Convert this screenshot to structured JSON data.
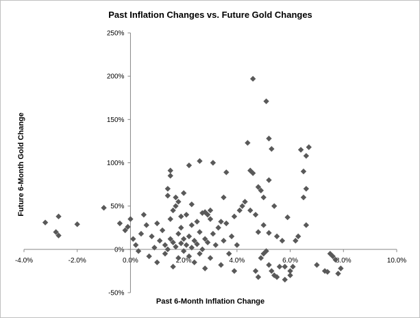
{
  "chart_data": {
    "type": "scatter",
    "title": "Past Inflation Changes vs. Future Gold Changes",
    "xlabel": "Past 6-Month Inflation Change",
    "ylabel": "Future 6-Month Gold Change",
    "xlim": [
      -0.04,
      0.1
    ],
    "ylim": [
      -0.5,
      2.5
    ],
    "x_ticks": [
      -0.04,
      -0.02,
      0.0,
      0.02,
      0.04,
      0.06,
      0.08,
      0.1
    ],
    "x_tick_labels": [
      "-4.0%",
      "-2.0%",
      "0.0%",
      "2.0%",
      "4.0%",
      "6.0%",
      "8.0%",
      "10.0%"
    ],
    "y_ticks": [
      -0.5,
      0.0,
      0.5,
      1.0,
      1.5,
      2.0,
      2.5
    ],
    "y_tick_labels": [
      "-50%",
      "0%",
      "50%",
      "100%",
      "150%",
      "200%",
      "250%"
    ],
    "grid": false,
    "legend": "none",
    "marker_color": "#595959",
    "marker": "diamond",
    "series": [
      {
        "points": [
          [
            -0.032,
            0.31
          ],
          [
            -0.028,
            0.2
          ],
          [
            -0.027,
            0.38
          ],
          [
            -0.027,
            0.16
          ],
          [
            -0.02,
            0.29
          ],
          [
            -0.01,
            0.48
          ],
          [
            -0.004,
            0.3
          ],
          [
            -0.002,
            0.22
          ],
          [
            -0.001,
            0.26
          ],
          [
            0.0,
            0.35
          ],
          [
            0.001,
            0.12
          ],
          [
            0.002,
            0.05
          ],
          [
            0.003,
            -0.02
          ],
          [
            0.004,
            0.18
          ],
          [
            0.005,
            0.4
          ],
          [
            0.006,
            0.28
          ],
          [
            0.007,
            -0.08
          ],
          [
            0.008,
            0.15
          ],
          [
            0.009,
            0.02
          ],
          [
            0.01,
            0.3
          ],
          [
            0.01,
            -0.15
          ],
          [
            0.011,
            0.1
          ],
          [
            0.012,
            0.22
          ],
          [
            0.013,
            -0.05
          ],
          [
            0.013,
            0.05
          ],
          [
            0.014,
            0.0
          ],
          [
            0.015,
            0.35
          ],
          [
            0.015,
            0.12
          ],
          [
            0.016,
            -0.2
          ],
          [
            0.016,
            0.08
          ],
          [
            0.017,
            0.03
          ],
          [
            0.017,
            0.6
          ],
          [
            0.018,
            -0.1
          ],
          [
            0.018,
            0.18
          ],
          [
            0.019,
            0.07
          ],
          [
            0.019,
            0.25
          ],
          [
            0.02,
            -0.02
          ],
          [
            0.02,
            0.12
          ],
          [
            0.021,
            0.05
          ],
          [
            0.021,
            0.4
          ],
          [
            0.022,
            -0.08
          ],
          [
            0.022,
            0.15
          ],
          [
            0.023,
            0.02
          ],
          [
            0.023,
            0.28
          ],
          [
            0.024,
            -0.15
          ],
          [
            0.024,
            0.1
          ],
          [
            0.025,
            0.06
          ],
          [
            0.025,
            0.32
          ],
          [
            0.026,
            -0.05
          ],
          [
            0.026,
            0.2
          ],
          [
            0.027,
            0.0
          ],
          [
            0.028,
            0.12
          ],
          [
            0.028,
            -0.22
          ],
          [
            0.029,
            0.08
          ],
          [
            0.03,
            0.35
          ],
          [
            0.03,
            -0.1
          ],
          [
            0.031,
            0.18
          ],
          [
            0.032,
            0.05
          ],
          [
            0.033,
            0.25
          ],
          [
            0.034,
            -0.18
          ],
          [
            0.035,
            0.1
          ],
          [
            0.036,
            0.3
          ],
          [
            0.037,
            -0.05
          ],
          [
            0.038,
            0.15
          ],
          [
            0.039,
            -0.25
          ],
          [
            0.04,
            0.05
          ],
          [
            0.014,
            0.62
          ],
          [
            0.014,
            0.7
          ],
          [
            0.015,
            0.91
          ],
          [
            0.015,
            0.85
          ],
          [
            0.016,
            0.45
          ],
          [
            0.017,
            0.5
          ],
          [
            0.018,
            0.55
          ],
          [
            0.019,
            0.38
          ],
          [
            0.02,
            0.65
          ],
          [
            0.022,
            0.97
          ],
          [
            0.023,
            0.52
          ],
          [
            0.026,
            1.02
          ],
          [
            0.027,
            0.42
          ],
          [
            0.028,
            0.43
          ],
          [
            0.029,
            0.4
          ],
          [
            0.03,
            0.45
          ],
          [
            0.031,
            1.0
          ],
          [
            0.034,
            0.32
          ],
          [
            0.035,
            0.6
          ],
          [
            0.036,
            0.89
          ],
          [
            0.039,
            0.38
          ],
          [
            0.041,
            0.45
          ],
          [
            0.042,
            0.5
          ],
          [
            0.043,
            0.55
          ],
          [
            0.044,
            1.23
          ],
          [
            0.045,
            0.91
          ],
          [
            0.046,
            0.88
          ],
          [
            0.046,
            1.97
          ],
          [
            0.048,
            0.72
          ],
          [
            0.049,
            0.68
          ],
          [
            0.05,
            0.6
          ],
          [
            0.051,
            1.71
          ],
          [
            0.052,
            1.28
          ],
          [
            0.052,
            0.8
          ],
          [
            0.053,
            1.16
          ],
          [
            0.054,
            0.5
          ],
          [
            0.045,
            0.45
          ],
          [
            0.047,
            0.4
          ],
          [
            0.048,
            0.2
          ],
          [
            0.05,
            0.28
          ],
          [
            0.051,
            -0.02
          ],
          [
            0.052,
            0.19
          ],
          [
            0.053,
            -0.25
          ],
          [
            0.054,
            -0.3
          ],
          [
            0.055,
            0.15
          ],
          [
            0.056,
            -0.2
          ],
          [
            0.057,
            0.1
          ],
          [
            0.058,
            -0.35
          ],
          [
            0.059,
            0.37
          ],
          [
            0.06,
            -0.3
          ],
          [
            0.061,
            -0.2
          ],
          [
            0.062,
            0.1
          ],
          [
            0.063,
            0.15
          ],
          [
            0.064,
            1.15
          ],
          [
            0.065,
            0.9
          ],
          [
            0.065,
            0.6
          ],
          [
            0.066,
            1.08
          ],
          [
            0.066,
            0.7
          ],
          [
            0.066,
            0.28
          ],
          [
            0.067,
            1.18
          ],
          [
            0.047,
            -0.25
          ],
          [
            0.048,
            -0.32
          ],
          [
            0.049,
            -0.1
          ],
          [
            0.05,
            -0.05
          ],
          [
            0.052,
            -0.18
          ],
          [
            0.055,
            -0.32
          ],
          [
            0.058,
            -0.2
          ],
          [
            0.06,
            -0.25
          ],
          [
            0.07,
            -0.18
          ],
          [
            0.073,
            -0.25
          ],
          [
            0.074,
            -0.26
          ],
          [
            0.075,
            -0.05
          ],
          [
            0.076,
            -0.08
          ],
          [
            0.077,
            -0.12
          ],
          [
            0.078,
            -0.28
          ],
          [
            0.079,
            -0.22
          ]
        ]
      }
    ]
  }
}
